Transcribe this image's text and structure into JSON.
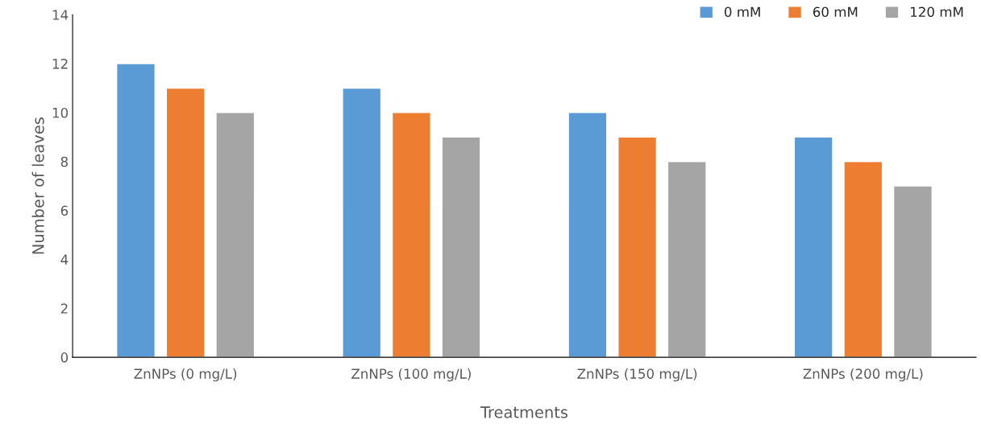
{
  "chart_data": {
    "type": "bar",
    "xlabel": "Treatments",
    "ylabel": "Number of leaves",
    "categories": [
      "ZnNPs (0 mg/L)",
      "ZnNPs (100 mg/L)",
      "ZnNPs (150 mg/L)",
      "ZnNPs (200 mg/L)"
    ],
    "series": [
      {
        "name": "0 mM",
        "color": "#5b9bd5",
        "values": [
          12,
          11,
          10,
          9
        ]
      },
      {
        "name": "60 mM",
        "color": "#ed7d31",
        "values": [
          11,
          10,
          9,
          8
        ]
      },
      {
        "name": "120 mM",
        "color": "#a5a5a5",
        "values": [
          10,
          9,
          8,
          7
        ]
      }
    ],
    "ylim": [
      0,
      14
    ],
    "yticks": [
      0,
      2,
      4,
      6,
      8,
      10,
      12,
      14
    ],
    "grid": false,
    "legend": "top right"
  }
}
